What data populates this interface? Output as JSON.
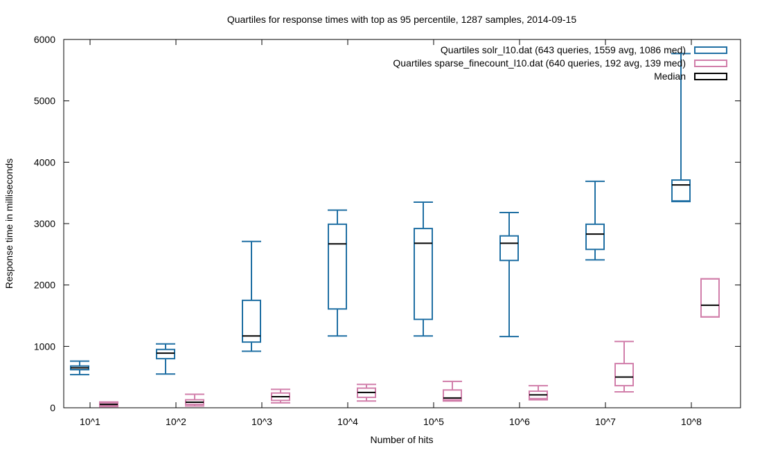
{
  "chart_data": {
    "type": "boxplot",
    "title": "Quartiles for response times with top as 95 percentile, 1287 samples, 2014-09-15",
    "xlabel": "Number of hits",
    "ylabel": "Response time in milliseconds",
    "ylim": [
      0,
      6000
    ],
    "yticks": [
      0,
      1000,
      2000,
      3000,
      4000,
      5000,
      6000
    ],
    "categories": [
      "10^1",
      "10^2",
      "10^3",
      "10^4",
      "10^5",
      "10^6",
      "10^7",
      "10^8"
    ],
    "legend_position": "top-right",
    "grid": false,
    "series": [
      {
        "name": "Quartiles solr_l10.dat (643 queries, 1559 avg, 1086 med)",
        "color": "#1f6fa3",
        "boxes": [
          {
            "min": 540,
            "q1": 620,
            "median": 650,
            "q3": 680,
            "p95": 760
          },
          {
            "min": 550,
            "q1": 800,
            "median": 890,
            "q3": 950,
            "p95": 1040
          },
          {
            "min": 920,
            "q1": 1070,
            "median": 1170,
            "q3": 1750,
            "p95": 2710
          },
          {
            "min": 1170,
            "q1": 1610,
            "median": 2670,
            "q3": 2990,
            "p95": 3220
          },
          {
            "min": 1170,
            "q1": 1440,
            "median": 2680,
            "q3": 2920,
            "p95": 3350
          },
          {
            "min": 1160,
            "q1": 2400,
            "median": 2680,
            "q3": 2800,
            "p95": 3180
          },
          {
            "min": 2410,
            "q1": 2580,
            "median": 2830,
            "q3": 2990,
            "p95": 3690
          },
          {
            "min": 3360,
            "q1": 3370,
            "median": 3630,
            "q3": 3710,
            "p95": 5770
          }
        ]
      },
      {
        "name": "Quartiles sparse_finecount_l10.dat (640 queries, 192 avg, 139 med)",
        "color": "#d17eaa",
        "boxes": [
          {
            "min": 20,
            "q1": 35,
            "median": 55,
            "q3": 80,
            "p95": 95
          },
          {
            "min": 30,
            "q1": 55,
            "median": 90,
            "q3": 130,
            "p95": 220
          },
          {
            "min": 80,
            "q1": 120,
            "median": 180,
            "q3": 240,
            "p95": 300
          },
          {
            "min": 110,
            "q1": 170,
            "median": 250,
            "q3": 320,
            "p95": 380
          },
          {
            "min": 110,
            "q1": 130,
            "median": 160,
            "q3": 290,
            "p95": 430
          },
          {
            "min": 130,
            "q1": 150,
            "median": 210,
            "q3": 270,
            "p95": 360
          },
          {
            "min": 260,
            "q1": 360,
            "median": 500,
            "q3": 720,
            "p95": 1080
          },
          {
            "min": 1480,
            "q1": 1480,
            "median": 1670,
            "q3": 2100,
            "p95": 2100
          }
        ]
      }
    ],
    "median_legend": "Median",
    "median_color": "#000000"
  }
}
